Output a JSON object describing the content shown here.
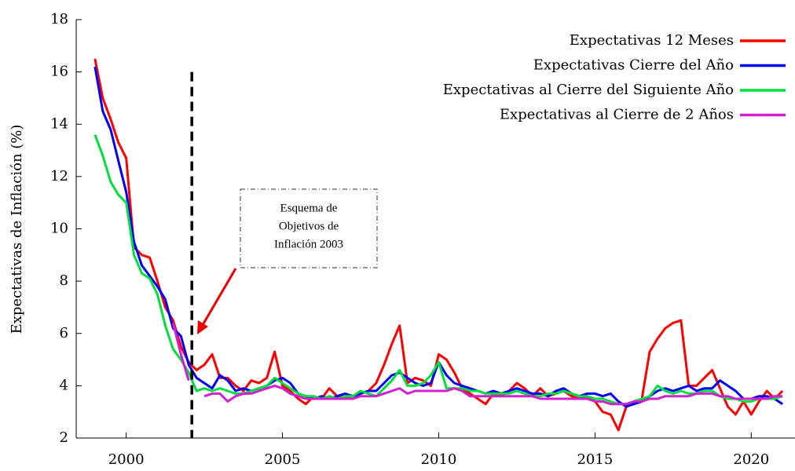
{
  "chart_data": {
    "type": "line",
    "y_label": "Expectativas de Inflación (%)",
    "legend": "upper right",
    "xlim": [
      1998.4,
      2021.4
    ],
    "xticks": [
      2000,
      2005,
      2010,
      2015,
      2020
    ],
    "ylim": [
      2,
      18
    ],
    "yticks": [
      2,
      4,
      6,
      8,
      10,
      12,
      14,
      16,
      18
    ],
    "vline_x": 2002.1,
    "annotation": [
      "Esquema de",
      "Objetivos de",
      "Inflación 2003"
    ],
    "x": [
      1999,
      1999.25,
      1999.5,
      1999.75,
      2000,
      2000.25,
      2000.5,
      2000.75,
      2001,
      2001.25,
      2001.5,
      2001.75,
      2002,
      2002.25,
      2002.5,
      2002.75,
      2003,
      2003.25,
      2003.5,
      2003.75,
      2004,
      2004.25,
      2004.5,
      2004.75,
      2005,
      2005.25,
      2005.5,
      2005.75,
      2006,
      2006.25,
      2006.5,
      2006.75,
      2007,
      2007.25,
      2007.5,
      2007.75,
      2008,
      2008.25,
      2008.5,
      2008.75,
      2009,
      2009.25,
      2009.5,
      2009.75,
      2010,
      2010.25,
      2010.5,
      2010.75,
      2011,
      2011.25,
      2011.5,
      2011.75,
      2012,
      2012.25,
      2012.5,
      2012.75,
      2013,
      2013.25,
      2013.5,
      2013.75,
      2014,
      2014.25,
      2014.5,
      2014.75,
      2015,
      2015.25,
      2015.5,
      2015.75,
      2016,
      2016.25,
      2016.5,
      2016.75,
      2017,
      2017.25,
      2017.5,
      2017.75,
      2018,
      2018.25,
      2018.5,
      2018.75,
      2019,
      2019.25,
      2019.5,
      2019.75,
      2020,
      2020.25,
      2020.5,
      2020.75,
      2021
    ],
    "series": [
      {
        "name": "Expectativas 12 Meses",
        "color": "#ff0000",
        "values": [
          16.5,
          15.0,
          14.2,
          13.3,
          12.7,
          9.3,
          9.0,
          8.9,
          8.0,
          7.0,
          6.5,
          5.5,
          4.9,
          4.6,
          4.8,
          5.2,
          4.3,
          4.3,
          4.0,
          3.8,
          4.2,
          4.1,
          4.3,
          5.3,
          4.0,
          3.8,
          3.5,
          3.3,
          3.6,
          3.5,
          3.9,
          3.6,
          3.6,
          3.5,
          3.7,
          3.8,
          4.1,
          4.8,
          5.6,
          6.3,
          4.1,
          4.3,
          4.2,
          4.0,
          5.2,
          5.0,
          4.5,
          3.9,
          3.7,
          3.5,
          3.3,
          3.7,
          3.6,
          3.8,
          4.1,
          3.9,
          3.6,
          3.9,
          3.6,
          3.7,
          3.8,
          3.6,
          3.5,
          3.6,
          3.4,
          3.0,
          2.9,
          2.3,
          3.2,
          3.4,
          3.5,
          5.3,
          5.8,
          6.2,
          6.4,
          6.5,
          4.0,
          4.0,
          4.3,
          4.6,
          3.9,
          3.2,
          2.9,
          3.4,
          2.9,
          3.4,
          3.8,
          3.5,
          3.8
        ]
      },
      {
        "name": "Expectativas Cierre del Año",
        "color": "#0000ff",
        "values": [
          16.2,
          14.5,
          13.8,
          12.6,
          11.4,
          9.5,
          8.6,
          8.2,
          7.8,
          7.3,
          6.2,
          5.9,
          4.8,
          4.3,
          4.1,
          3.9,
          4.4,
          4.2,
          3.8,
          3.9,
          3.8,
          3.9,
          4.0,
          4.2,
          4.3,
          4.1,
          3.7,
          3.6,
          3.5,
          3.6,
          3.5,
          3.6,
          3.7,
          3.6,
          3.7,
          3.8,
          3.8,
          4.1,
          4.4,
          4.5,
          4.3,
          4.1,
          4.0,
          4.1,
          4.9,
          4.4,
          4.1,
          4.0,
          3.9,
          3.8,
          3.7,
          3.8,
          3.7,
          3.8,
          3.9,
          3.8,
          3.7,
          3.7,
          3.6,
          3.8,
          3.9,
          3.7,
          3.6,
          3.7,
          3.7,
          3.6,
          3.7,
          3.4,
          3.2,
          3.3,
          3.4,
          3.6,
          3.8,
          3.9,
          3.8,
          3.9,
          4.0,
          3.8,
          3.9,
          3.9,
          4.2,
          4.0,
          3.8,
          3.5,
          3.5,
          3.6,
          3.6,
          3.5,
          3.3
        ]
      },
      {
        "name": "Expectativas al Cierre del Siguiente Año",
        "color": "#00e03c",
        "values": [
          13.6,
          12.8,
          11.8,
          11.3,
          11.0,
          9.0,
          8.3,
          8.1,
          7.5,
          6.3,
          5.4,
          5.0,
          4.5,
          3.8,
          3.9,
          3.8,
          3.9,
          3.8,
          3.7,
          3.7,
          3.8,
          3.9,
          4.0,
          4.3,
          4.1,
          3.9,
          3.7,
          3.6,
          3.6,
          3.5,
          3.6,
          3.5,
          3.6,
          3.6,
          3.8,
          3.7,
          3.6,
          3.9,
          4.2,
          4.6,
          4.0,
          4.0,
          4.1,
          4.4,
          4.9,
          3.9,
          3.9,
          3.9,
          3.8,
          3.8,
          3.7,
          3.7,
          3.7,
          3.7,
          3.8,
          3.7,
          3.6,
          3.6,
          3.7,
          3.7,
          3.8,
          3.7,
          3.6,
          3.6,
          3.5,
          3.5,
          3.4,
          3.3,
          3.3,
          3.4,
          3.5,
          3.6,
          4.0,
          3.8,
          3.7,
          3.8,
          3.7,
          3.7,
          3.8,
          3.8,
          3.6,
          3.5,
          3.5,
          3.4,
          3.4,
          3.5,
          3.5,
          3.5,
          3.6
        ]
      },
      {
        "name": "Expectativas al Cierre de 2 Años",
        "color": "#d020d0",
        "values": [
          null,
          null,
          null,
          null,
          null,
          null,
          null,
          null,
          null,
          null,
          6.4,
          5.2,
          4.2,
          null,
          3.6,
          3.7,
          3.7,
          3.4,
          3.6,
          3.7,
          3.7,
          3.8,
          3.9,
          4.0,
          3.9,
          3.7,
          3.6,
          3.5,
          3.5,
          3.5,
          3.5,
          3.5,
          3.5,
          3.5,
          3.6,
          3.6,
          3.6,
          3.7,
          3.8,
          3.9,
          3.7,
          3.8,
          3.8,
          3.8,
          3.8,
          3.8,
          3.9,
          3.8,
          3.6,
          3.6,
          3.6,
          3.6,
          3.6,
          3.6,
          3.6,
          3.6,
          3.6,
          3.5,
          3.5,
          3.5,
          3.5,
          3.5,
          3.5,
          3.5,
          3.4,
          3.4,
          3.3,
          3.3,
          3.3,
          3.4,
          3.4,
          3.5,
          3.5,
          3.6,
          3.6,
          3.6,
          3.6,
          3.7,
          3.7,
          3.7,
          3.6,
          3.6,
          3.5,
          3.5,
          3.5,
          3.5,
          3.5,
          3.6,
          3.6
        ]
      }
    ]
  }
}
